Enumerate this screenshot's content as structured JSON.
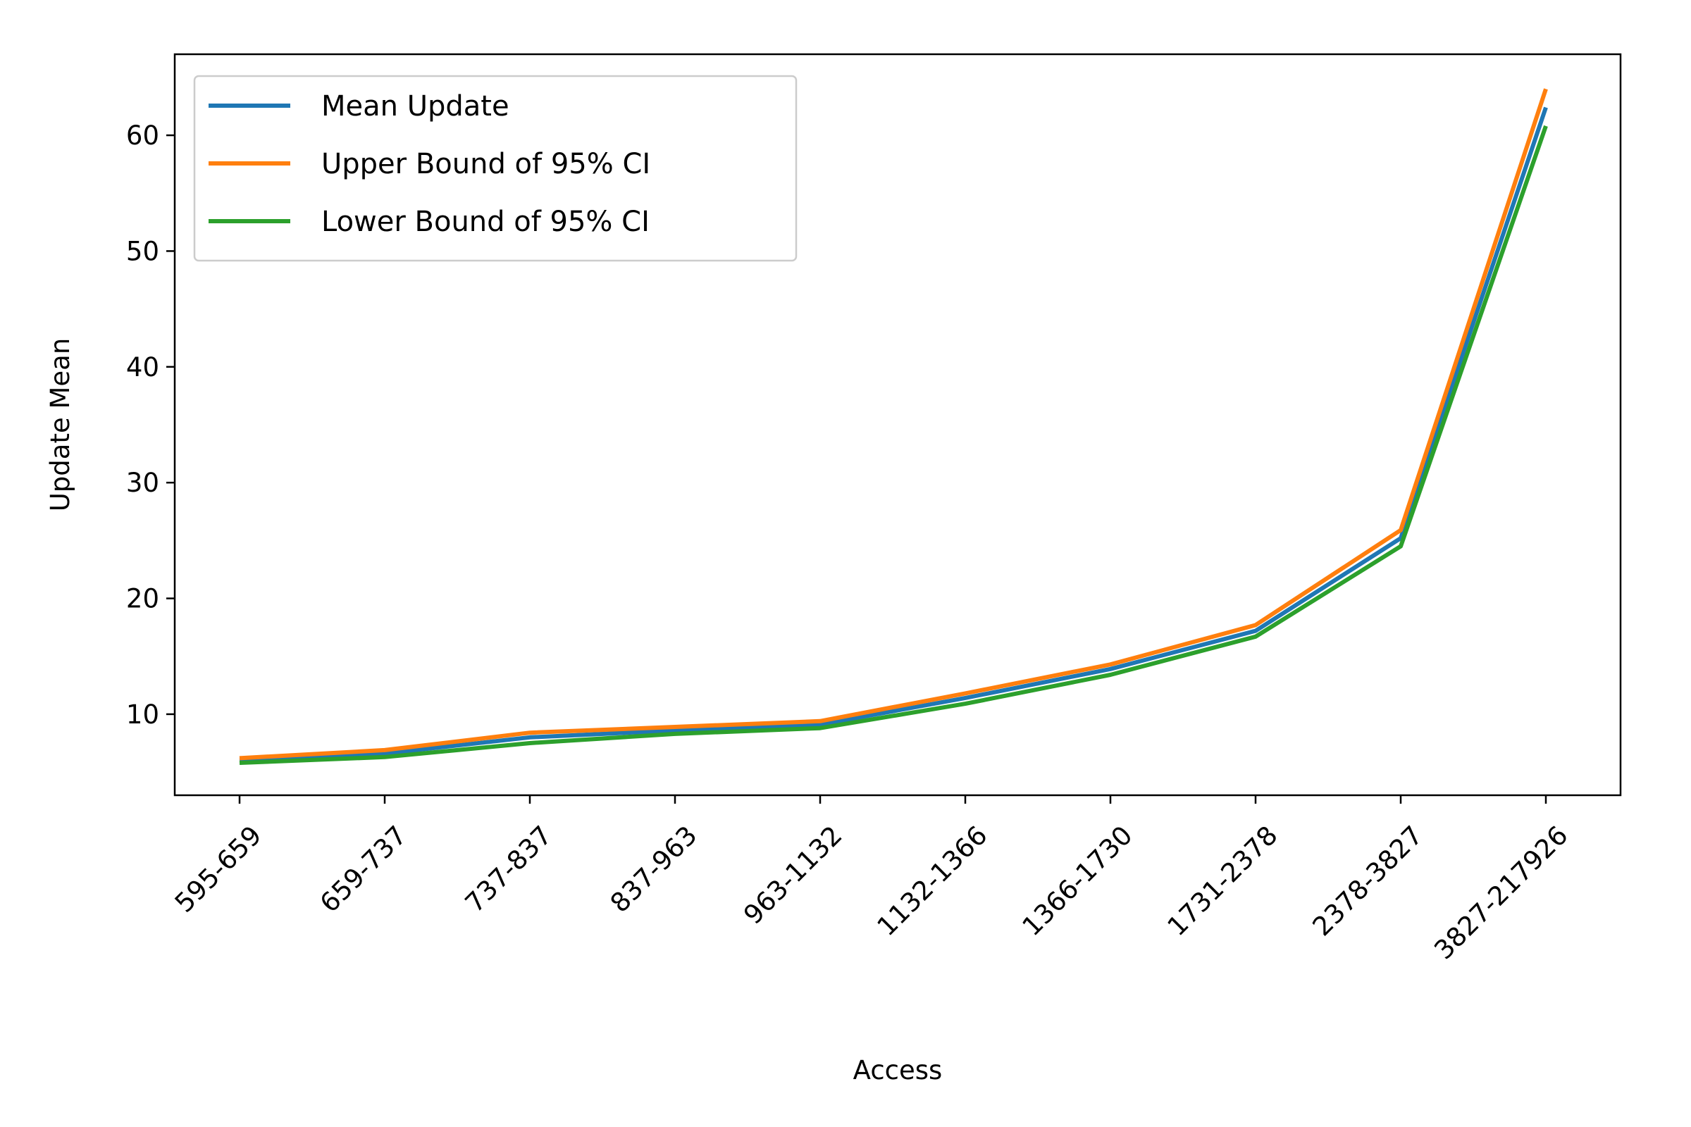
{
  "chart_data": {
    "type": "line",
    "title": "",
    "xlabel": "Access",
    "ylabel": "Update Mean",
    "categories": [
      "595-659",
      "659-737",
      "737-837",
      "837-963",
      "963-1132",
      "1132-1366",
      "1366-1730",
      "1731-2378",
      "2378-3827",
      "3827-217926"
    ],
    "yticks": [
      10,
      20,
      30,
      40,
      50,
      60
    ],
    "ylim": [
      3,
      67
    ],
    "grid": false,
    "legend_position": "upper-left",
    "series": [
      {
        "name": "Mean Update",
        "color": "#1f77b4",
        "values": [
          6.0,
          6.6,
          8.0,
          8.6,
          9.1,
          11.4,
          13.9,
          17.2,
          25.2,
          62.4
        ]
      },
      {
        "name": "Upper Bound of 95% CI",
        "color": "#ff7f0e",
        "values": [
          6.2,
          6.9,
          8.4,
          8.9,
          9.4,
          11.8,
          14.3,
          17.7,
          25.9,
          64.0
        ]
      },
      {
        "name": "Lower Bound of 95% CI",
        "color": "#2ca02c",
        "values": [
          5.8,
          6.3,
          7.5,
          8.3,
          8.8,
          10.9,
          13.4,
          16.7,
          24.5,
          60.8
        ]
      }
    ]
  }
}
